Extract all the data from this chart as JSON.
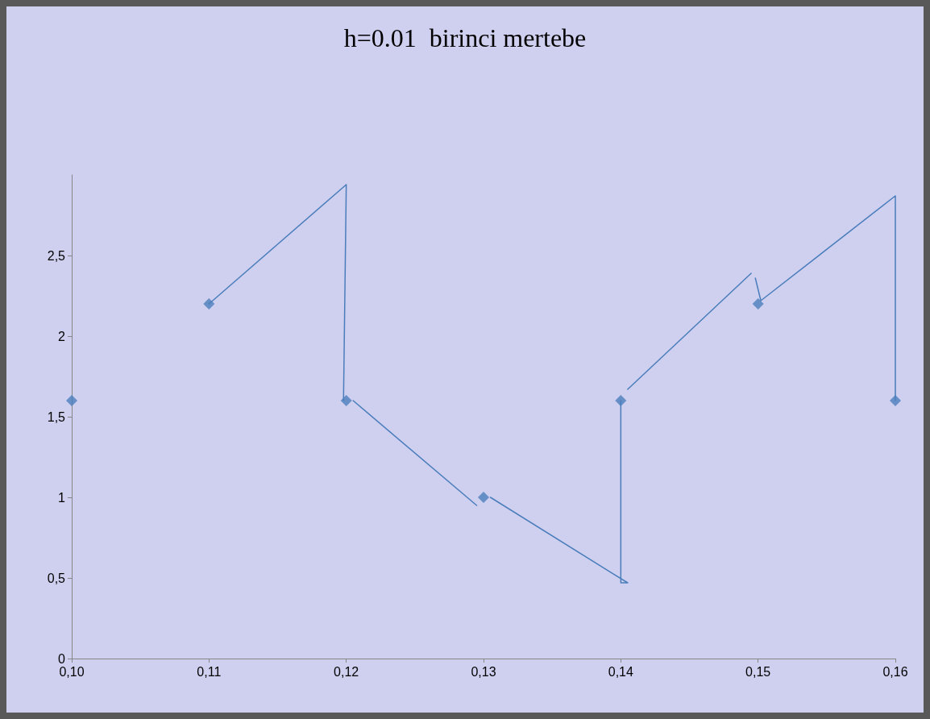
{
  "chart_data": {
    "type": "scatter",
    "title": "h=0.01  birinci mertebe",
    "marker": "diamond",
    "grid": false,
    "xlim": [
      0.1,
      0.16
    ],
    "xticks": [
      {
        "value": 0.1,
        "label": "0,10"
      },
      {
        "value": 0.11,
        "label": "0,11"
      },
      {
        "value": 0.12,
        "label": "0,12"
      },
      {
        "value": 0.13,
        "label": "0,13"
      },
      {
        "value": 0.14,
        "label": "0,14"
      },
      {
        "value": 0.15,
        "label": "0,15"
      },
      {
        "value": 0.16,
        "label": "0,16"
      }
    ],
    "ylim": [
      0,
      3
    ],
    "yticks": [
      0,
      {
        "value": 0.5,
        "label": "0,5"
      },
      1,
      {
        "value": 1.5,
        "label": "1,5"
      },
      2,
      {
        "value": 2.5,
        "label": "2,5"
      }
    ],
    "series": [
      {
        "color": "#4a7ebb",
        "x": [
          0.1,
          0.11,
          0.12,
          0.13,
          0.14,
          0.15,
          0.16
        ],
        "values": [
          1.6,
          2.2,
          1.6,
          1.0,
          1.6,
          2.2,
          1.6
        ]
      },
      {
        "type": "line",
        "color": "#4a7ebb",
        "marker": "none",
        "line_style": "solid",
        "x": [
          0.11,
          0.12,
          0.1198,
          0.1199,
          0.1205,
          0.1295,
          0.13,
          0.1305,
          0.1405,
          0.14,
          0.14,
          0.1402,
          0.1405,
          0.1495,
          0.1497,
          0.1498,
          0.1502,
          0.16,
          0.16
        ],
        "values": [
          2.2,
          2.94,
          1.6,
          null,
          1.6,
          0.95,
          null,
          1.0,
          0.47,
          0.47,
          1.6,
          null,
          1.67,
          2.39,
          null,
          2.36,
          2.22,
          2.87,
          1.6
        ]
      }
    ]
  }
}
